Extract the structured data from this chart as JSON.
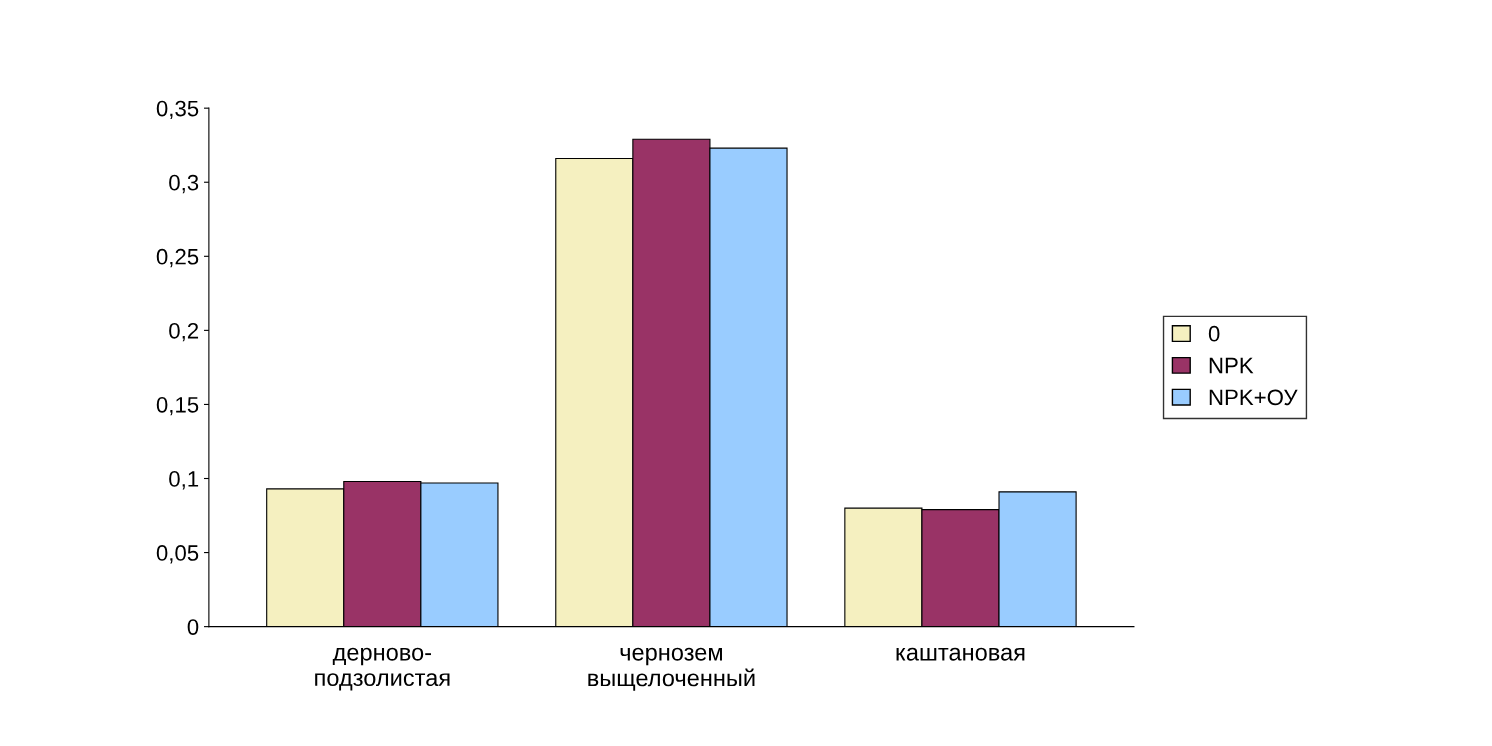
{
  "chart_data": {
    "type": "bar",
    "categories": [
      "дерново-\nподзолистая",
      "чернозем\nвыщелоченный",
      "каштановая"
    ],
    "series": [
      {
        "name": "0",
        "color": "#f5f0c0",
        "values": [
          0.093,
          0.316,
          0.08
        ]
      },
      {
        "name": "NPK",
        "color": "#993366",
        "values": [
          0.098,
          0.329,
          0.079
        ]
      },
      {
        "name": "NPK+ОУ",
        "color": "#99ccff",
        "values": [
          0.097,
          0.323,
          0.091
        ]
      }
    ],
    "ylim": [
      0,
      0.35
    ],
    "yticks": [
      0,
      {
        "value": 0.05,
        "label": "0,05"
      },
      {
        "value": 0.1,
        "label": "0,1"
      },
      {
        "value": 0.15,
        "label": "0,15"
      },
      {
        "value": 0.2,
        "label": "0,2"
      },
      {
        "value": 0.25,
        "label": "0,25"
      },
      {
        "value": 0.3,
        "label": "0,3"
      },
      {
        "value": 0.35,
        "label": "0,35"
      }
    ],
    "grid": false,
    "legend": "right"
  }
}
